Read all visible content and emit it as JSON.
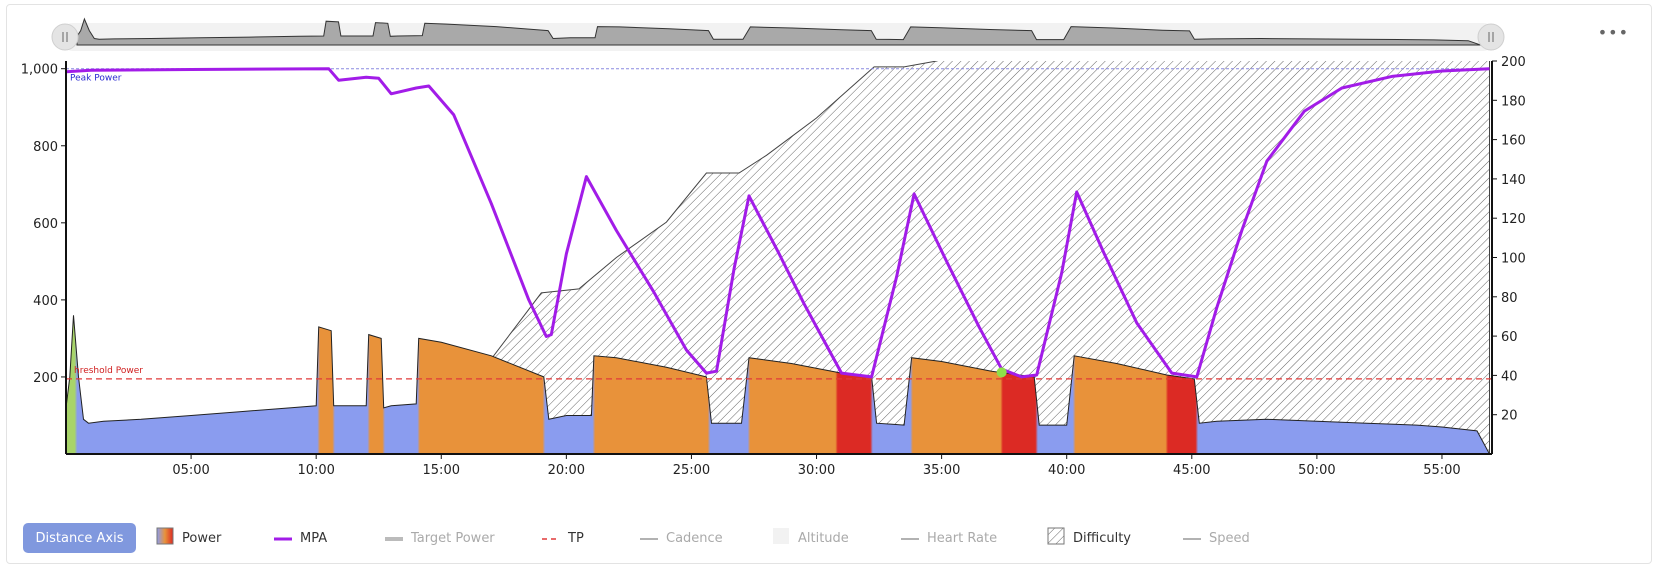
{
  "chart_data": {
    "type": "area",
    "x_axis": {
      "ticks": [
        "05:00",
        "10:00",
        "15:00",
        "20:00",
        "25:00",
        "30:00",
        "35:00",
        "40:00",
        "45:00",
        "50:00",
        "55:00"
      ],
      "range_min": [
        0,
        57
      ]
    },
    "y_left": {
      "ticks": [
        "200",
        "400",
        "600",
        "800",
        "1,000"
      ],
      "range": [
        0,
        1020
      ]
    },
    "y_right": {
      "ticks": [
        "20",
        "40",
        "60",
        "80",
        "100",
        "120",
        "140",
        "160",
        "180",
        "200"
      ],
      "range": [
        0,
        200
      ]
    },
    "annotations": {
      "peak_power_label": "Peak Power",
      "threshold_power_label": "hreshold Power",
      "peak_power_value": 1000,
      "threshold_power_value": 195
    },
    "series": [
      {
        "name": "Power",
        "points": [
          [
            0,
            120
          ],
          [
            0.15,
            200
          ],
          [
            0.3,
            360
          ],
          [
            0.5,
            200
          ],
          [
            0.7,
            90
          ],
          [
            0.9,
            80
          ],
          [
            1.5,
            85
          ],
          [
            3,
            90
          ],
          [
            5,
            100
          ],
          [
            7,
            110
          ],
          [
            9,
            120
          ],
          [
            10,
            125
          ],
          [
            10.1,
            330
          ],
          [
            10.6,
            320
          ],
          [
            10.7,
            125
          ],
          [
            12,
            125
          ],
          [
            12.1,
            310
          ],
          [
            12.6,
            300
          ],
          [
            12.7,
            120
          ],
          [
            13,
            125
          ],
          [
            14,
            130
          ],
          [
            14.1,
            300
          ],
          [
            15,
            290
          ],
          [
            17,
            255
          ],
          [
            19.1,
            200
          ],
          [
            19.3,
            90
          ],
          [
            20,
            100
          ],
          [
            21,
            100
          ],
          [
            21.1,
            255
          ],
          [
            22,
            250
          ],
          [
            24,
            225
          ],
          [
            25.6,
            200
          ],
          [
            25.8,
            80
          ],
          [
            27,
            80
          ],
          [
            27.3,
            250
          ],
          [
            29,
            235
          ],
          [
            31,
            210
          ],
          [
            32.2,
            200
          ],
          [
            32.4,
            80
          ],
          [
            33.5,
            75
          ],
          [
            33.8,
            250
          ],
          [
            35,
            240
          ],
          [
            37,
            215
          ],
          [
            38.7,
            200
          ],
          [
            38.9,
            75
          ],
          [
            40,
            75
          ],
          [
            40.3,
            255
          ],
          [
            42,
            235
          ],
          [
            44,
            205
          ],
          [
            45.1,
            195
          ],
          [
            45.3,
            80
          ],
          [
            46,
            85
          ],
          [
            48,
            90
          ],
          [
            50,
            85
          ],
          [
            52,
            80
          ],
          [
            54,
            75
          ],
          [
            55,
            70
          ],
          [
            56.4,
            60
          ],
          [
            56.9,
            0
          ]
        ],
        "intensity_zones": [
          [
            0,
            0.4,
            "low"
          ],
          [
            0.4,
            10.1,
            "base"
          ],
          [
            10.1,
            10.7,
            "high"
          ],
          [
            10.7,
            12.1,
            "base"
          ],
          [
            12.1,
            12.7,
            "high"
          ],
          [
            12.7,
            14.1,
            "base"
          ],
          [
            14.1,
            19.1,
            "high"
          ],
          [
            19.1,
            21.1,
            "base"
          ],
          [
            21.1,
            25.7,
            "high"
          ],
          [
            25.7,
            27.3,
            "base"
          ],
          [
            27.3,
            30.8,
            "high"
          ],
          [
            30.8,
            32.2,
            "max"
          ],
          [
            32.2,
            33.8,
            "base"
          ],
          [
            33.8,
            37.4,
            "high"
          ],
          [
            37.4,
            38.8,
            "max"
          ],
          [
            38.8,
            40.3,
            "base"
          ],
          [
            40.3,
            44,
            "high"
          ],
          [
            44,
            45.2,
            "max"
          ],
          [
            45.2,
            56.9,
            "base"
          ]
        ]
      },
      {
        "name": "MPA",
        "points": [
          [
            0,
            992
          ],
          [
            1,
            996
          ],
          [
            5,
            998
          ],
          [
            10.5,
            1000
          ],
          [
            10.9,
            970
          ],
          [
            12,
            978
          ],
          [
            12.5,
            975
          ],
          [
            13,
            935
          ],
          [
            14,
            950
          ],
          [
            14.5,
            955
          ],
          [
            15.5,
            880
          ],
          [
            17,
            650
          ],
          [
            18.5,
            400
          ],
          [
            19.2,
            305
          ],
          [
            19.4,
            310
          ],
          [
            20,
            520
          ],
          [
            20.8,
            720
          ],
          [
            22,
            580
          ],
          [
            23.5,
            420
          ],
          [
            24.8,
            270
          ],
          [
            25.6,
            210
          ],
          [
            26,
            215
          ],
          [
            26.7,
            480
          ],
          [
            27.3,
            670
          ],
          [
            28.5,
            520
          ],
          [
            29.5,
            390
          ],
          [
            30.5,
            270
          ],
          [
            31,
            210
          ],
          [
            32.2,
            200
          ],
          [
            33.2,
            460
          ],
          [
            33.9,
            675
          ],
          [
            35.2,
            500
          ],
          [
            36.5,
            330
          ],
          [
            37.4,
            220
          ],
          [
            38.2,
            200
          ],
          [
            38.8,
            205
          ],
          [
            39.8,
            470
          ],
          [
            40.4,
            680
          ],
          [
            41.5,
            520
          ],
          [
            42.8,
            340
          ],
          [
            44.2,
            210
          ],
          [
            45.2,
            200
          ],
          [
            46,
            380
          ],
          [
            47,
            580
          ],
          [
            48,
            760
          ],
          [
            49.5,
            890
          ],
          [
            51,
            950
          ],
          [
            53,
            980
          ],
          [
            55,
            994
          ],
          [
            56.9,
            1000
          ]
        ]
      },
      {
        "name": "Target Power",
        "points": []
      },
      {
        "name": "TP",
        "value": 195
      },
      {
        "name": "Cadence",
        "points": []
      },
      {
        "name": "Altitude",
        "points": []
      },
      {
        "name": "Heart Rate",
        "points": []
      },
      {
        "name": "Difficulty",
        "axis": "right",
        "points": [
          [
            0,
            0
          ],
          [
            13,
            22
          ],
          [
            14,
            25
          ],
          [
            16.5,
            40
          ],
          [
            19,
            82
          ],
          [
            20.5,
            84
          ],
          [
            22,
            100
          ],
          [
            24,
            118
          ],
          [
            25.6,
            143
          ],
          [
            26.9,
            143
          ],
          [
            28,
            152
          ],
          [
            30,
            171
          ],
          [
            32.3,
            197
          ],
          [
            33.5,
            197
          ],
          [
            34.8,
            200
          ],
          [
            35.5,
            203
          ],
          [
            56.9,
            203
          ]
        ]
      },
      {
        "name": "Speed",
        "points": []
      }
    ]
  },
  "legend": {
    "distance_axis_label": "Distance Axis",
    "items": [
      {
        "label": "Power",
        "active": true
      },
      {
        "label": "MPA",
        "active": true
      },
      {
        "label": "Target Power",
        "active": false
      },
      {
        "label": "TP",
        "active": true
      },
      {
        "label": "Cadence",
        "active": false
      },
      {
        "label": "Altitude",
        "active": false
      },
      {
        "label": "Heart Rate",
        "active": false
      },
      {
        "label": "Difficulty",
        "active": true
      },
      {
        "label": "Speed",
        "active": false
      }
    ]
  },
  "colors": {
    "power_base": "#8a9cef",
    "power_high": "#e8923a",
    "power_max": "#dc2a24",
    "power_low": "#a8d46a",
    "mpa": "#a21ce8",
    "tp": "#e03a3a",
    "peak": "#8a8ae0",
    "difficulty": "#555555"
  },
  "navigator": {
    "more_label": "•••"
  }
}
